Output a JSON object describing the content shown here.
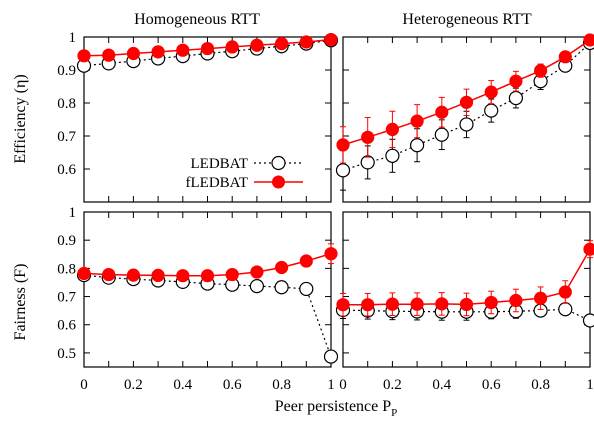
{
  "figure": {
    "col_titles": [
      "Homogeneous RTT",
      "Heterogeneous RTT"
    ],
    "row_labels": [
      "Efficiency (η)",
      "Fairness (F)"
    ],
    "xlabel_main": "Peer persistence P",
    "xlabel_sub": "P"
  },
  "legend": {
    "items": [
      {
        "name": "LEDBAT",
        "style": "dotted-open-circle",
        "color": "#000000"
      },
      {
        "name": "fLEDBAT",
        "style": "solid-filled-circle",
        "color": "#ff0000"
      }
    ]
  },
  "chart_data": [
    {
      "type": "line",
      "title": "Homogeneous RTT",
      "ylabel": "Efficiency (η)",
      "xlabel": "",
      "x": [
        0,
        0.1,
        0.2,
        0.3,
        0.4,
        0.5,
        0.6,
        0.7,
        0.8,
        0.9,
        1
      ],
      "xlim": [
        0,
        1
      ],
      "ylim": [
        0.5,
        1
      ],
      "yticks": [
        0.6,
        0.7,
        0.8,
        0.9,
        1
      ],
      "ytick_labels": [
        "0.6",
        "0.7",
        "0.8",
        "0.9",
        "1"
      ],
      "xticks": [],
      "xtick_labels": [],
      "legend": "lower-right",
      "series": [
        {
          "name": "LEDBAT",
          "values": [
            0.913,
            0.92,
            0.927,
            0.935,
            0.942,
            0.95,
            0.957,
            0.965,
            0.972,
            0.98,
            0.99
          ],
          "err": [
            0.015,
            0,
            0,
            0,
            0,
            0,
            0,
            0,
            0,
            0,
            0
          ]
        },
        {
          "name": "fLEDBAT",
          "values": [
            0.943,
            0.945,
            0.95,
            0.955,
            0.96,
            0.965,
            0.97,
            0.975,
            0.98,
            0.985,
            0.992
          ],
          "err": [
            0,
            0,
            0,
            0,
            0,
            0,
            0,
            0,
            0,
            0,
            0
          ]
        }
      ]
    },
    {
      "type": "line",
      "title": "Heterogeneous RTT",
      "ylabel": "",
      "xlabel": "",
      "x": [
        0,
        0.1,
        0.2,
        0.3,
        0.4,
        0.5,
        0.6,
        0.7,
        0.8,
        0.9,
        1
      ],
      "xlim": [
        0,
        1
      ],
      "ylim": [
        0.5,
        1
      ],
      "yticks": [
        0.6,
        0.7,
        0.8,
        0.9,
        1
      ],
      "ytick_labels": [],
      "xticks": [],
      "xtick_labels": [],
      "series": [
        {
          "name": "LEDBAT",
          "values": [
            0.596,
            0.62,
            0.64,
            0.672,
            0.704,
            0.735,
            0.777,
            0.815,
            0.866,
            0.913,
            0.982
          ],
          "err": [
            0.06,
            0.05,
            0.05,
            0.05,
            0.045,
            0.04,
            0.035,
            0.03,
            0.025,
            0.015,
            0.005
          ]
        },
        {
          "name": "fLEDBAT",
          "values": [
            0.673,
            0.696,
            0.72,
            0.745,
            0.772,
            0.802,
            0.833,
            0.866,
            0.898,
            0.94,
            0.991
          ],
          "err": [
            0.055,
            0.06,
            0.055,
            0.05,
            0.045,
            0.04,
            0.035,
            0.03,
            0.02,
            0.015,
            0.005
          ]
        }
      ]
    },
    {
      "type": "line",
      "title": "",
      "ylabel": "Fairness (F)",
      "xlabel": "Peer persistence P_P",
      "x": [
        0,
        0.1,
        0.2,
        0.3,
        0.4,
        0.5,
        0.6,
        0.7,
        0.8,
        0.9,
        1
      ],
      "xlim": [
        0,
        1
      ],
      "ylim": [
        0.45,
        1
      ],
      "yticks": [
        0.5,
        0.6,
        0.7,
        0.8,
        0.9,
        1
      ],
      "ytick_labels": [
        "0.5",
        "0.6",
        "0.7",
        "0.8",
        "0.9",
        "1"
      ],
      "xticks": [
        0,
        0.2,
        0.4,
        0.6,
        0.8,
        1
      ],
      "xtick_labels": [
        "0",
        "0.2",
        "0.4",
        "0.6",
        "0.8",
        "1"
      ],
      "series": [
        {
          "name": "LEDBAT",
          "values": [
            0.776,
            0.767,
            0.762,
            0.757,
            0.752,
            0.746,
            0.742,
            0.737,
            0.733,
            0.727,
            0.487
          ],
          "err": [
            0,
            0,
            0,
            0,
            0,
            0,
            0,
            0,
            0,
            0,
            0.015
          ]
        },
        {
          "name": "fLEDBAT",
          "values": [
            0.782,
            0.778,
            0.776,
            0.775,
            0.774,
            0.774,
            0.778,
            0.787,
            0.803,
            0.826,
            0.852
          ],
          "err": [
            0.01,
            0,
            0,
            0,
            0,
            0,
            0,
            0,
            0,
            0,
            0.035
          ]
        }
      ]
    },
    {
      "type": "line",
      "title": "",
      "ylabel": "",
      "xlabel": "Peer persistence P_P",
      "x": [
        0,
        0.1,
        0.2,
        0.3,
        0.4,
        0.5,
        0.6,
        0.7,
        0.8,
        0.9,
        1
      ],
      "xlim": [
        0,
        1
      ],
      "ylim": [
        0.45,
        1
      ],
      "yticks": [
        0.5,
        0.6,
        0.7,
        0.8,
        0.9,
        1
      ],
      "ytick_labels": [],
      "xticks": [
        0,
        0.2,
        0.4,
        0.6,
        0.8,
        1
      ],
      "xtick_labels": [
        "0",
        "0.2",
        "0.4",
        "0.6",
        "0.8",
        "1"
      ],
      "series": [
        {
          "name": "LEDBAT",
          "values": [
            0.652,
            0.65,
            0.648,
            0.647,
            0.646,
            0.646,
            0.646,
            0.648,
            0.65,
            0.655,
            0.615
          ],
          "err": [
            0.03,
            0.03,
            0.03,
            0.03,
            0.03,
            0.03,
            0.025,
            0.025,
            0.02,
            0.02,
            0.01
          ]
        },
        {
          "name": "fLEDBAT",
          "values": [
            0.671,
            0.671,
            0.673,
            0.673,
            0.674,
            0.672,
            0.679,
            0.686,
            0.694,
            0.716,
            0.868
          ],
          "err": [
            0.04,
            0.04,
            0.04,
            0.04,
            0.04,
            0.04,
            0.04,
            0.04,
            0.04,
            0.04,
            0.03
          ]
        }
      ]
    }
  ]
}
